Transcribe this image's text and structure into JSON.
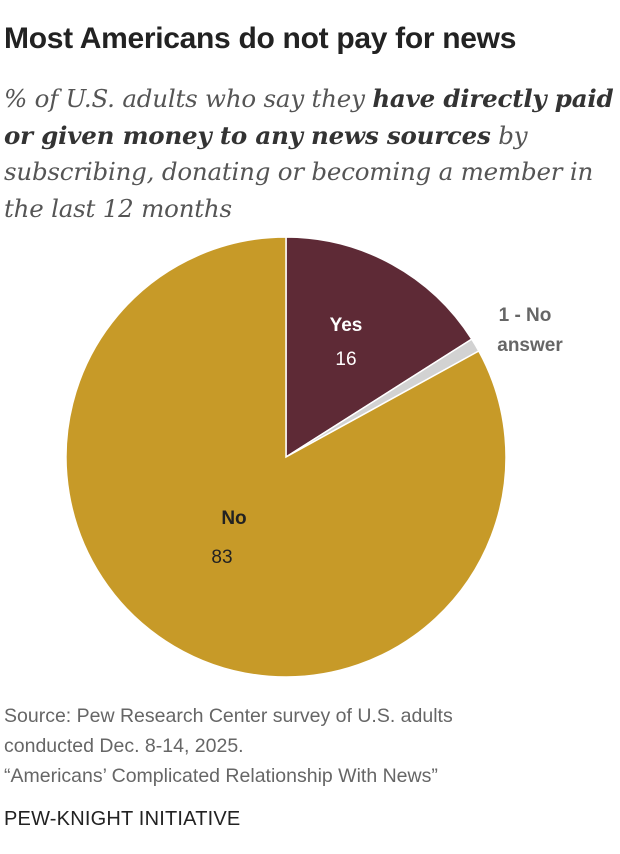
{
  "header": {
    "title": "Most Americans do not pay for news",
    "subtitle_pre": "% of U.S. adults who say they ",
    "subtitle_bold": "have directly paid or given money to any news sources",
    "subtitle_post": " by subscribing, donating or becoming a member in the last 12 months"
  },
  "chart_data": {
    "type": "pie",
    "categories": [
      "Yes",
      "No answer",
      "No"
    ],
    "values": [
      16,
      1,
      83
    ],
    "colors": [
      "#5e2a36",
      "#d2d2d2",
      "#c79a28"
    ],
    "labels": [
      {
        "name": "Yes",
        "value": "16"
      },
      {
        "name": "No answer",
        "value": "1 - No",
        "value_line2": "answer"
      },
      {
        "name": "No",
        "value": "83"
      }
    ]
  },
  "footer": {
    "source_line1": "Source: Pew Research Center survey of U.S. adults",
    "source_line2": "conducted Dec. 8-14, 2025.",
    "source_line3": "“Americans’ Complicated Relationship With News”",
    "brand": "PEW-KNIGHT INITIATIVE"
  }
}
